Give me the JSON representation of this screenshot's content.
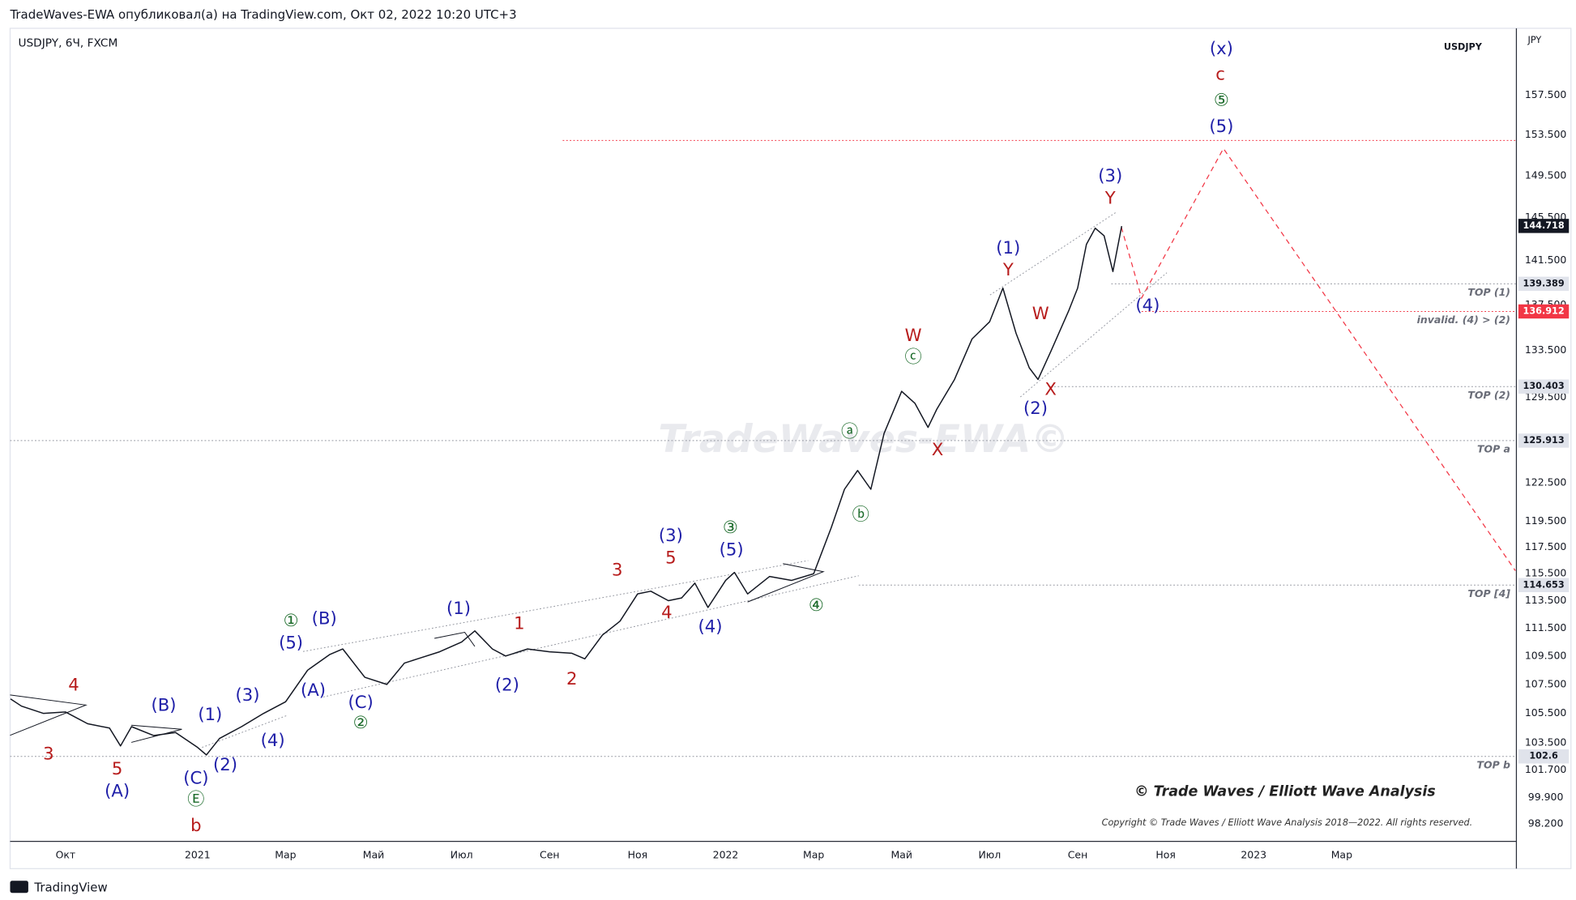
{
  "header": "TradeWaves-EWA опубликовал(а) на TradingView.com, Окт 02, 2022 10:20 UTC+3",
  "symbol_badge": "USDJPY",
  "axis_unit": "JPY",
  "watermark": "TradeWaves-EWA©",
  "signature": "© Trade Waves / Elliott Wave Analysis",
  "copyright": "Copyright © Trade Waves / Elliott Wave Analysis 2018—2022. All rights reserved.",
  "footer": "TradingView",
  "chart_data": {
    "type": "line",
    "log_scale": true,
    "grid": false,
    "x": [
      -1.25,
      -1.0,
      -0.5,
      0,
      0.5,
      1.0,
      1.25,
      1.5,
      2.0,
      2.5,
      3.0,
      3.2,
      3.5,
      4.0,
      4.5,
      5.0,
      5.5,
      6.0,
      6.3,
      6.8,
      7.3,
      7.7,
      8.0,
      8.5,
      9.0,
      9.3,
      9.7,
      10.0,
      10.5,
      11.0,
      11.5,
      11.8,
      12.2,
      12.6,
      13.0,
      13.3,
      13.7,
      14.0,
      14.3,
      14.6,
      15.0,
      15.2,
      15.5,
      16.0,
      16.5,
      17.0,
      17.4,
      17.7,
      18.0,
      18.3,
      18.6,
      19.0,
      19.3,
      19.6,
      19.8,
      20.2,
      20.6,
      21.0,
      21.3,
      21.6,
      21.9,
      22.1,
      22.4,
      22.8,
      23.0,
      23.2,
      23.4,
      23.6,
      23.8,
      24.0
    ],
    "series": [
      {
        "name": "USDJPY, 6Ч, FXCM",
        "color": "#131722",
        "values": [
          106.5,
          106.0,
          105.5,
          105.6,
          104.8,
          104.5,
          103.3,
          104.6,
          104.0,
          104.2,
          103.2,
          102.7,
          103.8,
          104.6,
          105.5,
          106.3,
          108.5,
          109.6,
          110.0,
          108.0,
          107.5,
          109.0,
          109.3,
          109.8,
          110.5,
          111.3,
          110.0,
          109.5,
          110.0,
          109.8,
          109.7,
          109.3,
          111.0,
          112.0,
          114.0,
          114.2,
          113.5,
          113.7,
          114.8,
          113.0,
          115.0,
          115.6,
          114.0,
          115.3,
          115.0,
          115.5,
          119.0,
          122.0,
          123.5,
          122.0,
          126.5,
          130.0,
          129.0,
          127.0,
          128.5,
          131.0,
          134.5,
          136.0,
          139.0,
          135.0,
          132.0,
          131.0,
          133.5,
          137.0,
          139.0,
          143.0,
          144.5,
          143.8,
          140.5,
          144.7
        ]
      }
    ],
    "xlim": [
      -1.26,
      32.97
    ],
    "xticks": [
      {
        "value": 0,
        "label": "Окт"
      },
      {
        "value": 3,
        "label": "2021"
      },
      {
        "value": 5,
        "label": "Мар"
      },
      {
        "value": 7,
        "label": "Май"
      },
      {
        "value": 9,
        "label": "Июл"
      },
      {
        "value": 11,
        "label": "Сен"
      },
      {
        "value": 13,
        "label": "Ноя"
      },
      {
        "value": 15,
        "label": "2022"
      },
      {
        "value": 17,
        "label": "Мар"
      },
      {
        "value": 19,
        "label": "Май"
      },
      {
        "value": 21,
        "label": "Июл"
      },
      {
        "value": 23,
        "label": "Сен"
      },
      {
        "value": 25,
        "label": "Ноя"
      },
      {
        "value": 27,
        "label": "2023"
      },
      {
        "value": 29,
        "label": "Мар"
      }
    ],
    "ylim": [
      97.1,
      164.5
    ],
    "yticks": [
      {
        "value": 98.2,
        "label": "98.200"
      },
      {
        "value": 99.9,
        "label": "99.900"
      },
      {
        "value": 101.7,
        "label": "101.700"
      },
      {
        "value": 103.5,
        "label": "103.500"
      },
      {
        "value": 105.5,
        "label": "105.500"
      },
      {
        "value": 107.5,
        "label": "107.500"
      },
      {
        "value": 109.5,
        "label": "109.500"
      },
      {
        "value": 111.5,
        "label": "111.500"
      },
      {
        "value": 113.5,
        "label": "113.500"
      },
      {
        "value": 115.5,
        "label": "115.500"
      },
      {
        "value": 117.5,
        "label": "117.500"
      },
      {
        "value": 119.5,
        "label": "119.500"
      },
      {
        "value": 122.5,
        "label": "122.500"
      },
      {
        "value": 129.5,
        "label": "129.500"
      },
      {
        "value": 133.5,
        "label": "133.500"
      },
      {
        "value": 137.5,
        "label": "137.500"
      },
      {
        "value": 141.5,
        "label": "141.500"
      },
      {
        "value": 145.5,
        "label": "145.500"
      },
      {
        "value": 149.5,
        "label": "149.500"
      },
      {
        "value": 153.5,
        "label": "153.500"
      },
      {
        "value": 157.5,
        "label": "157.500"
      }
    ],
    "last_price": 144.718,
    "levels": [
      {
        "value": 139.389,
        "label": "TOP (1)",
        "color": "#9598a1"
      },
      {
        "value": 136.912,
        "label": "invalid. (4) > (2)",
        "color": "#f23645"
      },
      {
        "value": 130.403,
        "label": "TOP (2)",
        "color": "#9598a1"
      },
      {
        "value": 125.913,
        "label": "TOP a",
        "color": "#9598a1"
      },
      {
        "value": 114.653,
        "label": "TOP [4]",
        "color": "#9598a1"
      },
      {
        "value": 102.6,
        "label": "TOP b",
        "color": "#9598a1"
      }
    ],
    "annotations": [
      {
        "text": "4",
        "color": "#b71c1c"
      },
      {
        "text": "3",
        "color": "#b71c1c"
      },
      {
        "text": "5",
        "color": "#b71c1c"
      },
      {
        "text": "(A)",
        "color": "#1f1fa8"
      },
      {
        "text": "(B)",
        "color": "#1f1fa8"
      },
      {
        "text": "(1)",
        "color": "#1f1fa8"
      },
      {
        "text": "(3)",
        "color": "#1f1fa8"
      },
      {
        "text": "(4)",
        "color": "#1f1fa8"
      },
      {
        "text": "(2)",
        "color": "#1f1fa8"
      },
      {
        "text": "(C)",
        "color": "#1f1fa8"
      },
      {
        "text": "Ⓔ",
        "color": "#1b6b2a"
      },
      {
        "text": "b",
        "color": "#b71c1c"
      },
      {
        "text": "①",
        "color": "#1b6b2a"
      },
      {
        "text": "(5)",
        "color": "#1f1fa8"
      },
      {
        "text": "(B)",
        "color": "#1f1fa8"
      },
      {
        "text": "(A)",
        "color": "#1f1fa8"
      },
      {
        "text": "(C)",
        "color": "#1f1fa8"
      },
      {
        "text": "②",
        "color": "#1b6b2a"
      },
      {
        "text": "(1)",
        "color": "#1f1fa8"
      },
      {
        "text": "(2)",
        "color": "#1f1fa8"
      },
      {
        "text": "1",
        "color": "#b71c1c"
      },
      {
        "text": "2",
        "color": "#b71c1c"
      },
      {
        "text": "3",
        "color": "#b71c1c"
      },
      {
        "text": "(3)",
        "color": "#1f1fa8"
      },
      {
        "text": "5",
        "color": "#b71c1c"
      },
      {
        "text": "4",
        "color": "#b71c1c"
      },
      {
        "text": "(4)",
        "color": "#1f1fa8"
      },
      {
        "text": "③",
        "color": "#1b6b2a"
      },
      {
        "text": "(5)",
        "color": "#1f1fa8"
      },
      {
        "text": "④",
        "color": "#1b6b2a"
      },
      {
        "text": "ⓐ",
        "color": "#1b6b2a"
      },
      {
        "text": "ⓑ",
        "color": "#1b6b2a"
      },
      {
        "text": "W",
        "color": "#b71c1c"
      },
      {
        "text": "ⓒ",
        "color": "#1b6b2a"
      },
      {
        "text": "X",
        "color": "#b71c1c"
      },
      {
        "text": "(1)",
        "color": "#1f1fa8"
      },
      {
        "text": "Y",
        "color": "#b71c1c"
      },
      {
        "text": "W",
        "color": "#b71c1c"
      },
      {
        "text": "X",
        "color": "#b71c1c"
      },
      {
        "text": "(2)",
        "color": "#1f1fa8"
      },
      {
        "text": "(3)",
        "color": "#1f1fa8"
      },
      {
        "text": "Y",
        "color": "#b71c1c"
      },
      {
        "text": "(4)",
        "color": "#1f1fa8"
      },
      {
        "text": "(x)",
        "color": "#1f1fa8"
      },
      {
        "text": "c",
        "color": "#b71c1c"
      },
      {
        "text": "⑤",
        "color": "#1b6b2a"
      },
      {
        "text": "(5)",
        "color": "#1f1fa8"
      }
    ]
  }
}
